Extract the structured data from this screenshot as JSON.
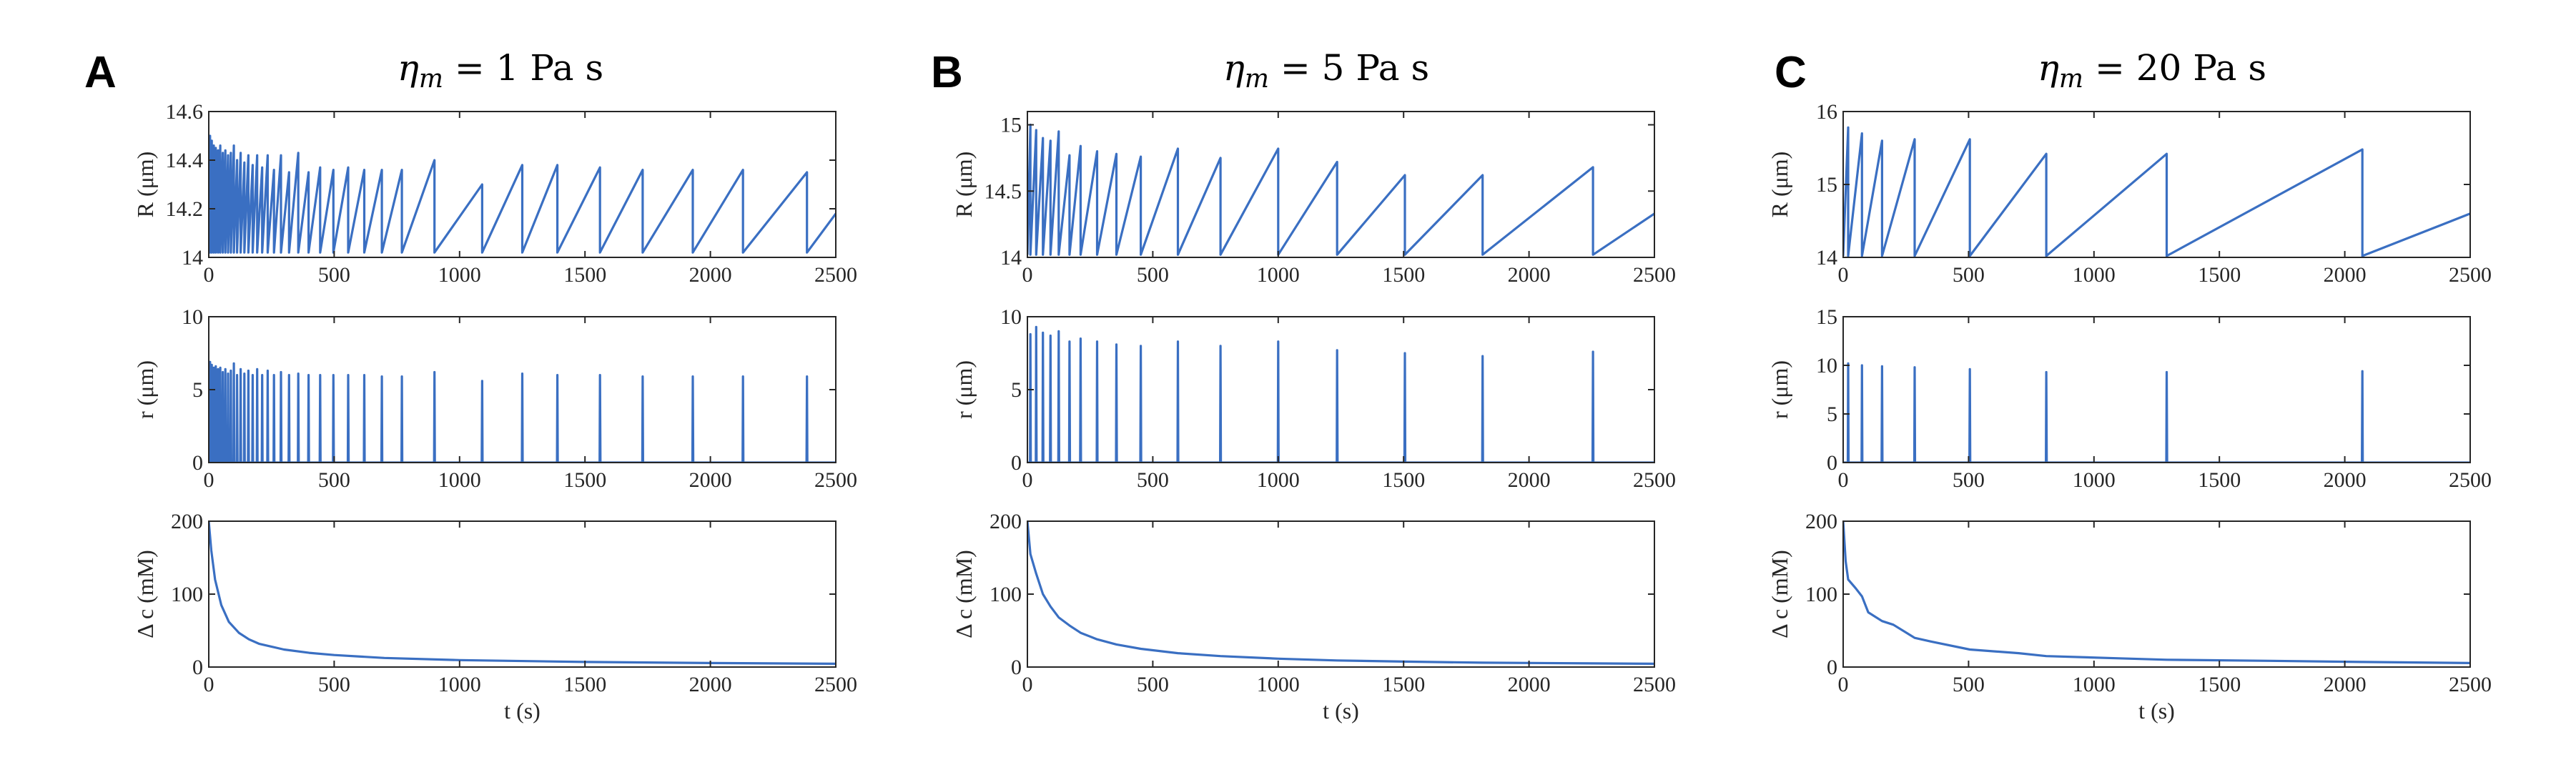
{
  "figure": {
    "series_color": "#3a6fc2",
    "axis_color": "#262626"
  },
  "chart_data": [
    {
      "panel": "A",
      "title": "η_m = 1 Pa s",
      "eta_symbol": "η",
      "eta_sub": "m",
      "eta_rest": " = 1 Pa s",
      "subplots": [
        {
          "id": "R",
          "type": "line",
          "ylabel": "R (μm)",
          "ylim": [
            14,
            14.6
          ],
          "yticks": [
            14,
            14.2,
            14.4,
            14.6
          ],
          "yticklabels": [
            "14",
            "14.2",
            "14.4",
            "14.6"
          ],
          "xlabel": "",
          "xlim": [
            0,
            2500
          ],
          "xticks": [
            0,
            500,
            1000,
            1500,
            2000,
            2500
          ],
          "xticklabels": [
            "0",
            "500",
            "1000",
            "1500",
            "2000",
            "2500"
          ]
        },
        {
          "id": "r",
          "type": "line",
          "ylabel": "r (μm)",
          "ylim": [
            0,
            10
          ],
          "yticks": [
            0,
            5,
            10
          ],
          "yticklabels": [
            "0",
            "5",
            "10"
          ],
          "xlabel": "",
          "xlim": [
            0,
            2500
          ],
          "xticks": [
            0,
            500,
            1000,
            1500,
            2000,
            2500
          ],
          "xticklabels": [
            "0",
            "500",
            "1000",
            "1500",
            "2000",
            "2500"
          ]
        },
        {
          "id": "dc",
          "type": "line",
          "ylabel": "Δ c (mM)",
          "ylim": [
            0,
            200
          ],
          "yticks": [
            0,
            100,
            200
          ],
          "yticklabels": [
            "0",
            "100",
            "200"
          ],
          "xlabel": "t (s)",
          "xlim": [
            0,
            2500
          ],
          "xticks": [
            0,
            500,
            1000,
            1500,
            2000,
            2500
          ],
          "xticklabels": [
            "0",
            "500",
            "1000",
            "1500",
            "2000",
            "2500"
          ]
        }
      ],
      "events": [
        {
          "t": 5,
          "Rmax": 14.5,
          "rmax": 6.9
        },
        {
          "t": 12,
          "Rmax": 14.48,
          "rmax": 6.7
        },
        {
          "t": 20,
          "Rmax": 14.46,
          "rmax": 6.5
        },
        {
          "t": 28,
          "Rmax": 14.45,
          "rmax": 6.6
        },
        {
          "t": 37,
          "Rmax": 14.44,
          "rmax": 6.4
        },
        {
          "t": 46,
          "Rmax": 14.46,
          "rmax": 6.5
        },
        {
          "t": 56,
          "Rmax": 14.43,
          "rmax": 6.2
        },
        {
          "t": 66,
          "Rmax": 14.44,
          "rmax": 6.4
        },
        {
          "t": 77,
          "Rmax": 14.42,
          "rmax": 6.1
        },
        {
          "t": 88,
          "Rmax": 14.43,
          "rmax": 6.3
        },
        {
          "t": 100,
          "Rmax": 14.46,
          "rmax": 6.8
        },
        {
          "t": 113,
          "Rmax": 14.4,
          "rmax": 6.0
        },
        {
          "t": 127,
          "Rmax": 14.43,
          "rmax": 6.4
        },
        {
          "t": 142,
          "Rmax": 14.39,
          "rmax": 6.1
        },
        {
          "t": 158,
          "Rmax": 14.42,
          "rmax": 6.3
        },
        {
          "t": 175,
          "Rmax": 14.38,
          "rmax": 6.0
        },
        {
          "t": 193,
          "Rmax": 14.42,
          "rmax": 6.4
        },
        {
          "t": 213,
          "Rmax": 14.37,
          "rmax": 6.0
        },
        {
          "t": 235,
          "Rmax": 14.42,
          "rmax": 6.3
        },
        {
          "t": 260,
          "Rmax": 14.36,
          "rmax": 6.0
        },
        {
          "t": 288,
          "Rmax": 14.42,
          "rmax": 6.2
        },
        {
          "t": 320,
          "Rmax": 14.35,
          "rmax": 6.0
        },
        {
          "t": 357,
          "Rmax": 14.43,
          "rmax": 6.1
        },
        {
          "t": 398,
          "Rmax": 14.35,
          "rmax": 6.0
        },
        {
          "t": 444,
          "Rmax": 14.37,
          "rmax": 6.0
        },
        {
          "t": 497,
          "Rmax": 14.36,
          "rmax": 6.0
        },
        {
          "t": 556,
          "Rmax": 14.37,
          "rmax": 6.0
        },
        {
          "t": 620,
          "Rmax": 14.36,
          "rmax": 6.0
        },
        {
          "t": 690,
          "Rmax": 14.36,
          "rmax": 5.9
        },
        {
          "t": 770,
          "Rmax": 14.36,
          "rmax": 5.9
        },
        {
          "t": 900,
          "Rmax": 14.4,
          "rmax": 6.2
        },
        {
          "t": 1090,
          "Rmax": 14.3,
          "rmax": 5.6
        },
        {
          "t": 1250,
          "Rmax": 14.38,
          "rmax": 6.1
        },
        {
          "t": 1390,
          "Rmax": 14.38,
          "rmax": 6.0
        },
        {
          "t": 1560,
          "Rmax": 14.37,
          "rmax": 6.0
        },
        {
          "t": 1730,
          "Rmax": 14.36,
          "rmax": 5.9
        },
        {
          "t": 1930,
          "Rmax": 14.36,
          "rmax": 5.9
        },
        {
          "t": 2130,
          "Rmax": 14.36,
          "rmax": 5.9
        },
        {
          "t": 2385,
          "Rmax": 14.35,
          "rmax": 5.9
        }
      ],
      "R_min": 14.02,
      "R_end": 14.18,
      "dc_curve": [
        [
          0,
          200
        ],
        [
          10,
          160
        ],
        [
          25,
          120
        ],
        [
          50,
          85
        ],
        [
          80,
          62
        ],
        [
          120,
          47
        ],
        [
          160,
          38
        ],
        [
          200,
          32
        ],
        [
          300,
          24
        ],
        [
          400,
          19.5
        ],
        [
          500,
          16.5
        ],
        [
          700,
          12.5
        ],
        [
          1000,
          9.5
        ],
        [
          1500,
          7
        ],
        [
          2000,
          5.5
        ],
        [
          2500,
          4.5
        ]
      ]
    },
    {
      "panel": "B",
      "title": "η_m = 5 Pa s",
      "eta_symbol": "η",
      "eta_sub": "m",
      "eta_rest": " = 5 Pa s",
      "subplots": [
        {
          "id": "R",
          "type": "line",
          "ylabel": "R (μm)",
          "ylim": [
            14,
            15.1
          ],
          "yticks": [
            14,
            14.5,
            15
          ],
          "yticklabels": [
            "14",
            "14.5",
            "15"
          ],
          "xlabel": "",
          "xlim": [
            0,
            2500
          ],
          "xticks": [
            0,
            500,
            1000,
            1500,
            2000,
            2500
          ],
          "xticklabels": [
            "0",
            "500",
            "1000",
            "1500",
            "2000",
            "2500"
          ]
        },
        {
          "id": "r",
          "type": "line",
          "ylabel": "r (μm)",
          "ylim": [
            0,
            10
          ],
          "yticks": [
            0,
            5,
            10
          ],
          "yticklabels": [
            "0",
            "5",
            "10"
          ],
          "xlabel": "",
          "xlim": [
            0,
            2500
          ],
          "xticks": [
            0,
            500,
            1000,
            1500,
            2000,
            2500
          ],
          "xticklabels": [
            "0",
            "500",
            "1000",
            "1500",
            "2000",
            "2500"
          ]
        },
        {
          "id": "dc",
          "type": "line",
          "ylabel": "Δ c (mM)",
          "ylim": [
            0,
            200
          ],
          "yticks": [
            0,
            100,
            200
          ],
          "yticklabels": [
            "0",
            "100",
            "200"
          ],
          "xlabel": "t (s)",
          "xlim": [
            0,
            2500
          ],
          "xticks": [
            0,
            500,
            1000,
            1500,
            2000,
            2500
          ],
          "xticklabels": [
            "0",
            "500",
            "1000",
            "1500",
            "2000",
            "2500"
          ]
        }
      ],
      "events": [
        {
          "t": 12,
          "Rmax": 15.0,
          "rmax": 8.8
        },
        {
          "t": 35,
          "Rmax": 14.96,
          "rmax": 9.3
        },
        {
          "t": 62,
          "Rmax": 14.9,
          "rmax": 8.9
        },
        {
          "t": 92,
          "Rmax": 14.88,
          "rmax": 8.7
        },
        {
          "t": 125,
          "Rmax": 14.95,
          "rmax": 9.0
        },
        {
          "t": 168,
          "Rmax": 14.77,
          "rmax": 8.3
        },
        {
          "t": 212,
          "Rmax": 14.84,
          "rmax": 8.5
        },
        {
          "t": 278,
          "Rmax": 14.8,
          "rmax": 8.3
        },
        {
          "t": 355,
          "Rmax": 14.78,
          "rmax": 8.1
        },
        {
          "t": 452,
          "Rmax": 14.76,
          "rmax": 8.0
        },
        {
          "t": 600,
          "Rmax": 14.82,
          "rmax": 8.3
        },
        {
          "t": 770,
          "Rmax": 14.75,
          "rmax": 8.0
        },
        {
          "t": 1000,
          "Rmax": 14.82,
          "rmax": 8.3
        },
        {
          "t": 1235,
          "Rmax": 14.72,
          "rmax": 7.7
        },
        {
          "t": 1505,
          "Rmax": 14.62,
          "rmax": 7.5
        },
        {
          "t": 1815,
          "Rmax": 14.62,
          "rmax": 7.3
        },
        {
          "t": 2255,
          "Rmax": 14.68,
          "rmax": 7.6
        }
      ],
      "R_min": 14.02,
      "R_end": 14.33,
      "dc_curve": [
        [
          0,
          200
        ],
        [
          12,
          155
        ],
        [
          35,
          128
        ],
        [
          62,
          100
        ],
        [
          92,
          83
        ],
        [
          125,
          68
        ],
        [
          168,
          57
        ],
        [
          212,
          47
        ],
        [
          278,
          38
        ],
        [
          355,
          31
        ],
        [
          452,
          25
        ],
        [
          600,
          19
        ],
        [
          770,
          15
        ],
        [
          1000,
          11.5
        ],
        [
          1235,
          9
        ],
        [
          1505,
          7.5
        ],
        [
          1815,
          6
        ],
        [
          2255,
          5
        ],
        [
          2500,
          4.5
        ]
      ]
    },
    {
      "panel": "C",
      "title": "η_m = 20 Pa s",
      "eta_symbol": "η",
      "eta_sub": "m",
      "eta_rest": " = 20 Pa s",
      "subplots": [
        {
          "id": "R",
          "type": "line",
          "ylabel": "R (μm)",
          "ylim": [
            14,
            16
          ],
          "yticks": [
            14,
            15,
            16
          ],
          "yticklabels": [
            "14",
            "15",
            "16"
          ],
          "xlabel": "",
          "xlim": [
            0,
            2500
          ],
          "xticks": [
            0,
            500,
            1000,
            1500,
            2000,
            2500
          ],
          "xticklabels": [
            "0",
            "500",
            "1000",
            "1500",
            "2000",
            "2500"
          ]
        },
        {
          "id": "r",
          "type": "line",
          "ylabel": "r (μm)",
          "ylim": [
            0,
            15
          ],
          "yticks": [
            0,
            5,
            10,
            15
          ],
          "yticklabels": [
            "0",
            "5",
            "10",
            "15"
          ],
          "xlabel": "",
          "xlim": [
            0,
            2500
          ],
          "xticks": [
            0,
            500,
            1000,
            1500,
            2000,
            2500
          ],
          "xticklabels": [
            "0",
            "500",
            "1000",
            "1500",
            "2000",
            "2500"
          ]
        },
        {
          "id": "dc",
          "type": "line",
          "ylabel": "Δ c (mM)",
          "ylim": [
            0,
            200
          ],
          "yticks": [
            0,
            100,
            200
          ],
          "yticklabels": [
            "0",
            "100",
            "200"
          ],
          "xlabel": "t (s)",
          "xlim": [
            0,
            2500
          ],
          "xticks": [
            0,
            500,
            1000,
            1500,
            2000,
            2500
          ],
          "xticklabels": [
            "0",
            "500",
            "1000",
            "1500",
            "2000",
            "2500"
          ]
        }
      ],
      "events": [
        {
          "t": 20,
          "Rmax": 15.78,
          "rmax": 10.2
        },
        {
          "t": 75,
          "Rmax": 15.7,
          "rmax": 10.0
        },
        {
          "t": 155,
          "Rmax": 15.6,
          "rmax": 9.9
        },
        {
          "t": 285,
          "Rmax": 15.62,
          "rmax": 9.8
        },
        {
          "t": 505,
          "Rmax": 15.62,
          "rmax": 9.6
        },
        {
          "t": 810,
          "Rmax": 15.42,
          "rmax": 9.3
        },
        {
          "t": 1290,
          "Rmax": 15.42,
          "rmax": 9.3
        },
        {
          "t": 2070,
          "Rmax": 15.48,
          "rmax": 9.4
        }
      ],
      "R_min": 14.02,
      "R_end": 14.6,
      "dc_curve": [
        [
          0,
          200
        ],
        [
          10,
          145
        ],
        [
          20,
          120
        ],
        [
          50,
          108
        ],
        [
          75,
          97
        ],
        [
          100,
          75
        ],
        [
          155,
          63
        ],
        [
          200,
          58
        ],
        [
          285,
          40
        ],
        [
          350,
          35
        ],
        [
          505,
          24
        ],
        [
          700,
          19
        ],
        [
          810,
          15
        ],
        [
          1100,
          12
        ],
        [
          1290,
          10
        ],
        [
          1700,
          8.5
        ],
        [
          2070,
          7
        ],
        [
          2500,
          5.5
        ]
      ]
    }
  ]
}
